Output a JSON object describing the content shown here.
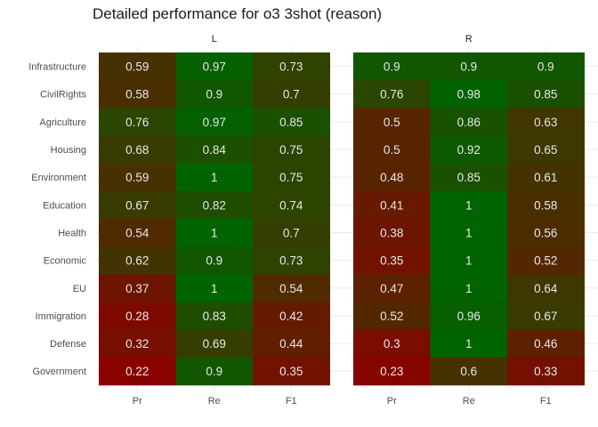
{
  "chart_data": {
    "type": "heatmap",
    "title": "Detailed performance for o3 3shot (reason)",
    "facets": [
      "L",
      "R"
    ],
    "columns": [
      "Pr",
      "Re",
      "F1"
    ],
    "rows": [
      "Infrastructure",
      "CivilRights",
      "Agriculture",
      "Housing",
      "Environment",
      "Education",
      "Health",
      "Economic",
      "EU",
      "Immigration",
      "Defense",
      "Government"
    ],
    "cells": {
      "L": [
        [
          "0.59",
          "0.97",
          "0.73"
        ],
        [
          "0.58",
          "0.9",
          "0.7"
        ],
        [
          "0.76",
          "0.97",
          "0.85"
        ],
        [
          "0.68",
          "0.84",
          "0.75"
        ],
        [
          "0.59",
          "1",
          "0.75"
        ],
        [
          "0.67",
          "0.82",
          "0.74"
        ],
        [
          "0.54",
          "1",
          "0.7"
        ],
        [
          "0.62",
          "0.9",
          "0.73"
        ],
        [
          "0.37",
          "1",
          "0.54"
        ],
        [
          "0.28",
          "0.83",
          "0.42"
        ],
        [
          "0.32",
          "0.69",
          "0.44"
        ],
        [
          "0.22",
          "0.9",
          "0.35"
        ]
      ],
      "R": [
        [
          "0.9",
          "0.9",
          "0.9"
        ],
        [
          "0.76",
          "0.98",
          "0.85"
        ],
        [
          "0.5",
          "0.86",
          "0.63"
        ],
        [
          "0.5",
          "0.92",
          "0.65"
        ],
        [
          "0.48",
          "0.85",
          "0.61"
        ],
        [
          "0.41",
          "1",
          "0.58"
        ],
        [
          "0.38",
          "1",
          "0.56"
        ],
        [
          "0.35",
          "1",
          "0.52"
        ],
        [
          "0.47",
          "1",
          "0.64"
        ],
        [
          "0.52",
          "0.96",
          "0.67"
        ],
        [
          "0.3",
          "1",
          "0.46"
        ],
        [
          "0.23",
          "0.6",
          "0.33"
        ]
      ]
    },
    "color_low": "#8b0000",
    "color_high": "#006400",
    "value_range": [
      0.2,
      1.0
    ],
    "grid": true
  }
}
